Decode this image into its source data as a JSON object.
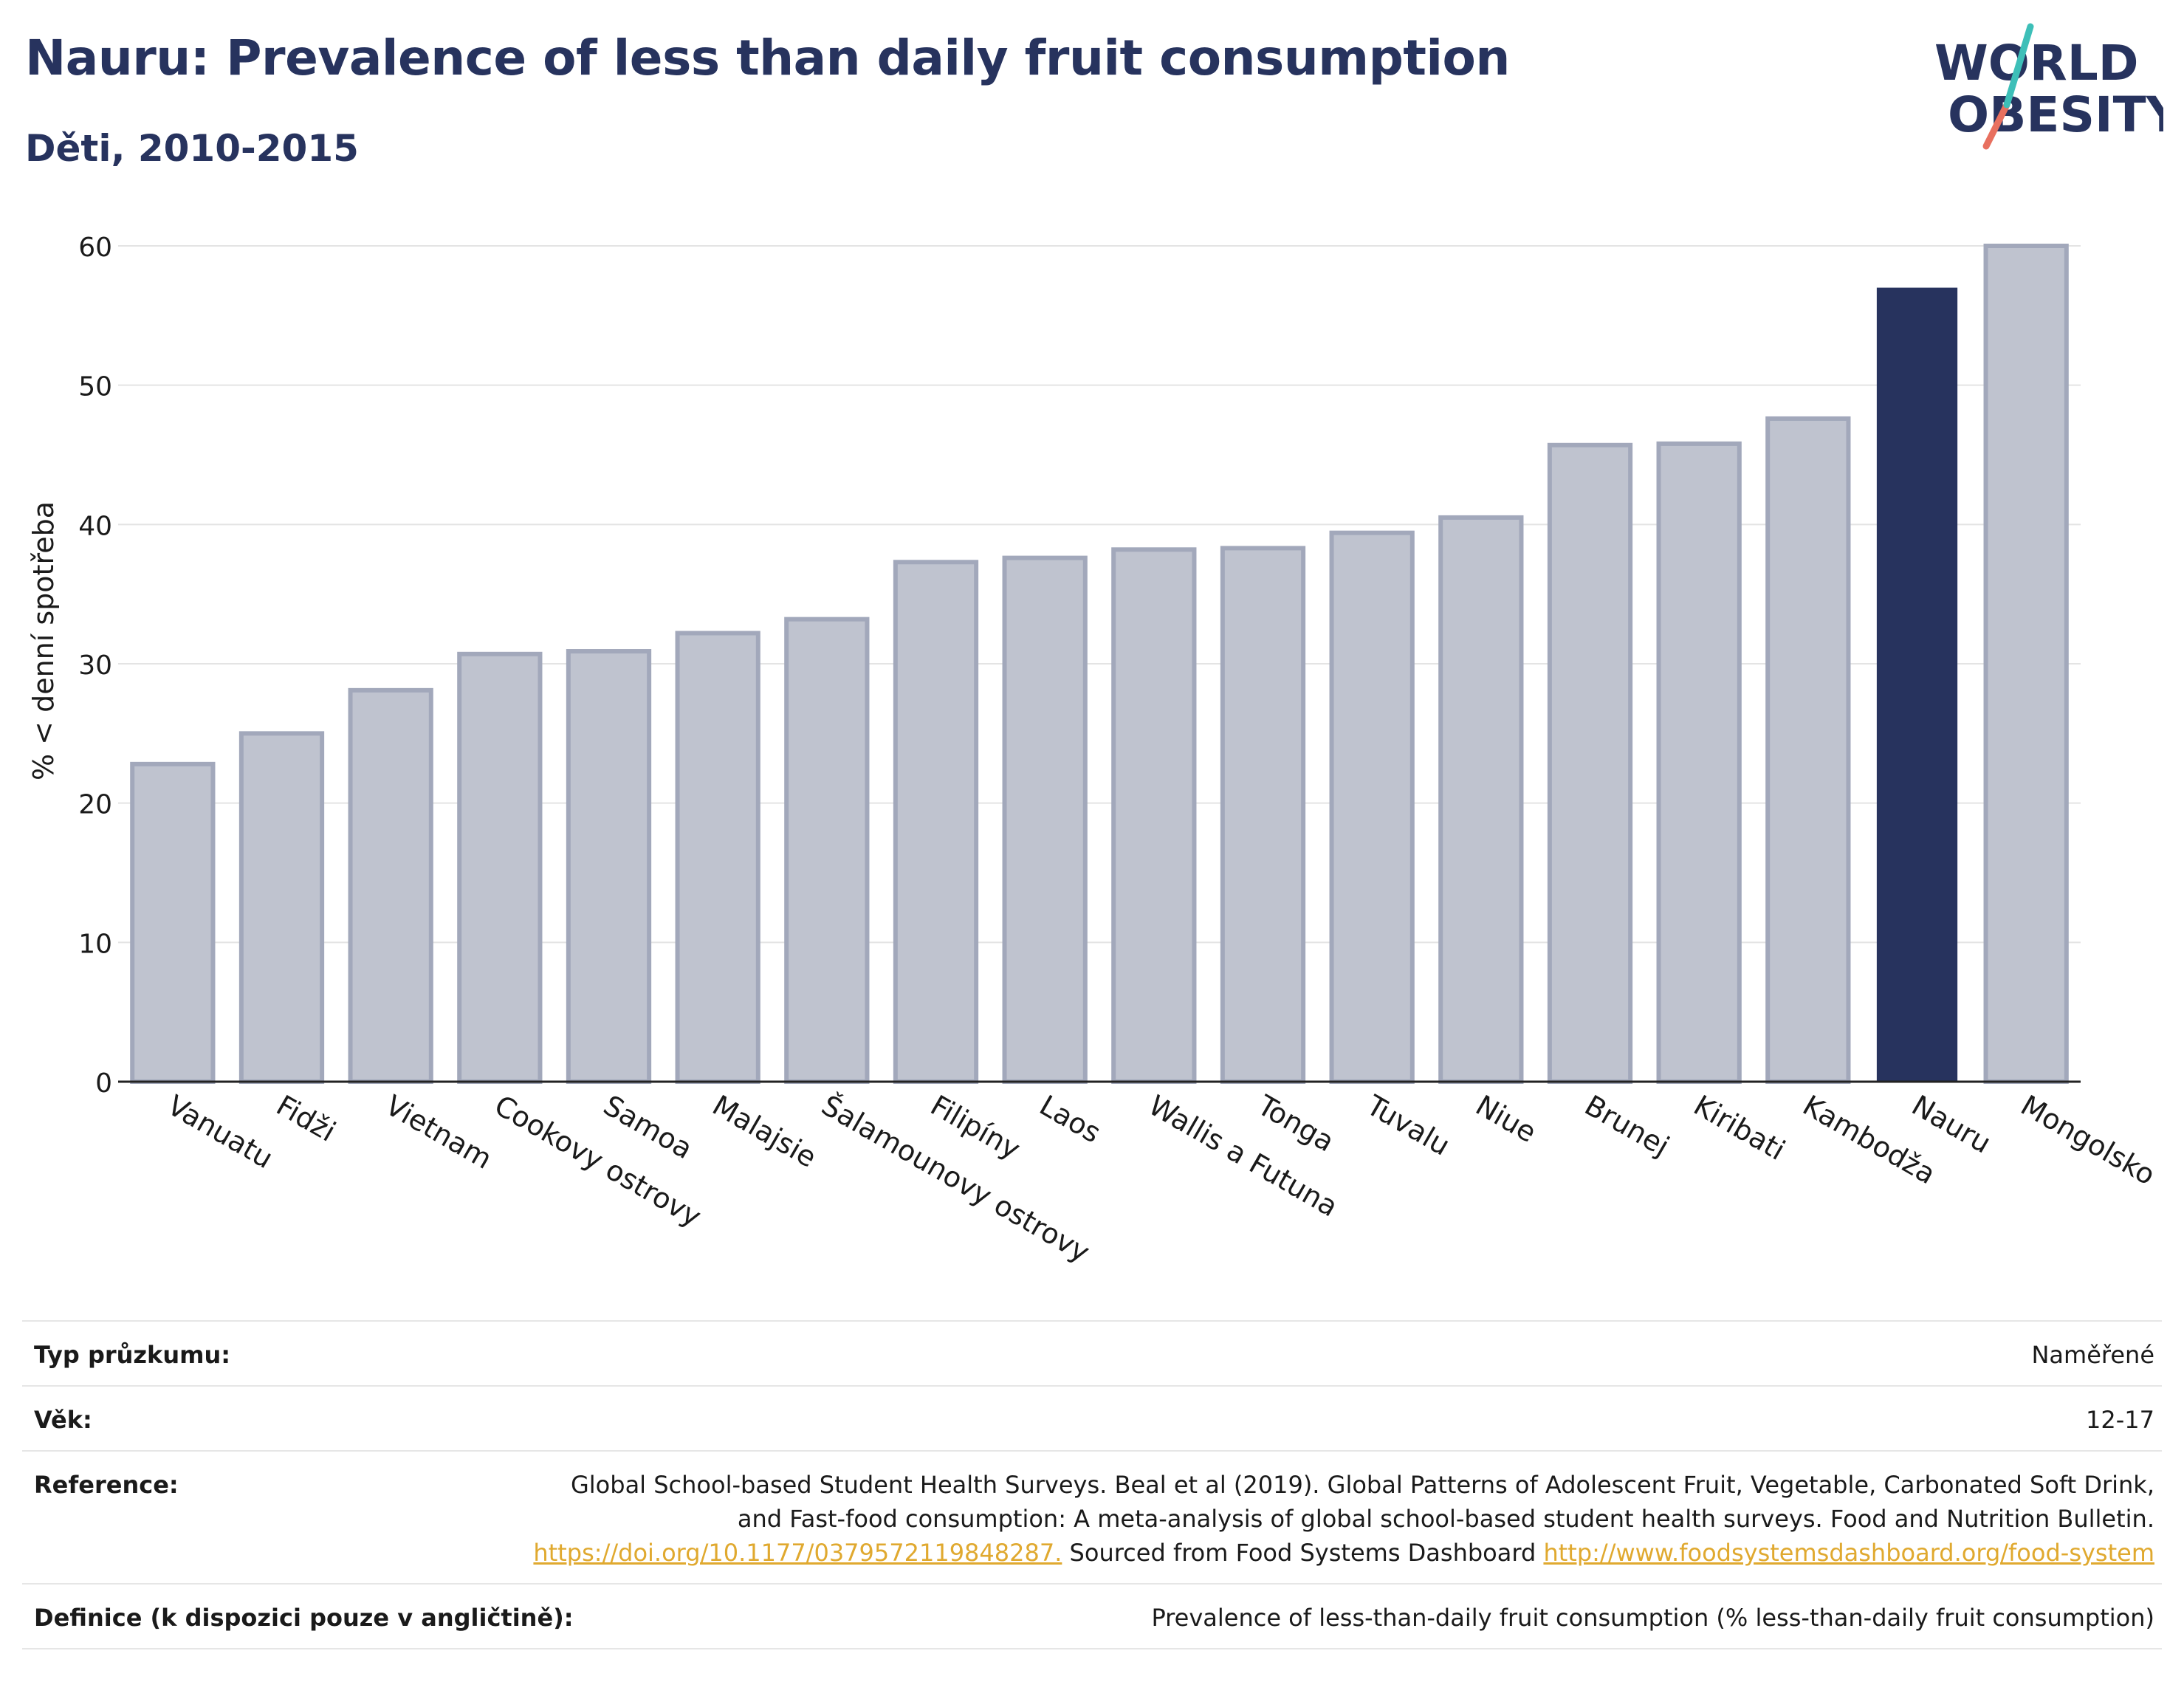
{
  "header": {
    "title": "Nauru: Prevalence of less than daily fruit consumption",
    "subtitle": "Děti, 2010-2015"
  },
  "logo": {
    "line1": "WORLD",
    "line2": "OBESITY"
  },
  "chart_data": {
    "type": "bar",
    "ylabel": "% < denní spotřeba",
    "xlabel": "",
    "ylim": [
      0,
      60
    ],
    "yticks": [
      0,
      10,
      20,
      30,
      40,
      50,
      60
    ],
    "grid": true,
    "categories": [
      "Vanuatu",
      "Fidži",
      "Vietnam",
      "Cookovy ostrovy",
      "Samoa",
      "Malajsie",
      "Šalamounovy ostrovy",
      "Filipíny",
      "Laos",
      "Wallis a Futuna",
      "Tonga",
      "Tuvalu",
      "Niue",
      "Brunej",
      "Kiribati",
      "Kambodža",
      "Nauru",
      "Mongolsko"
    ],
    "values": [
      22.8,
      25.0,
      28.1,
      30.7,
      30.9,
      32.2,
      33.2,
      37.3,
      37.6,
      38.2,
      38.3,
      39.4,
      40.5,
      45.7,
      45.8,
      47.6,
      57.0,
      60.0
    ],
    "highlight": "Nauru",
    "colors": {
      "default": "#bfc3cf",
      "default_border": "#a2a8bb",
      "highlight": "#27335e"
    }
  },
  "info": [
    {
      "key": "Typ průzkumu:",
      "value": "Naměřené"
    },
    {
      "key": "Věk:",
      "value": "12-17"
    },
    {
      "key": "Reference:",
      "value_text": "Global School-based Student Health Surveys. Beal et al (2019). Global Patterns of Adolescent Fruit, Vegetable, Carbonated Soft Drink, and Fast-food consumption: A meta-analysis of global school-based student health surveys. Food and Nutrition Bulletin.",
      "link1": "https://doi.org/10.1177/0379572119848287.",
      "mid_text": "Sourced from Food Systems Dashboard",
      "link2": "http://www.foodsystemsdashboard.org/food-system"
    },
    {
      "key": "Definice (k dispozici pouze v angličtině):",
      "value": "Prevalence of less-than-daily fruit consumption (% less-than-daily fruit consumption)"
    }
  ]
}
